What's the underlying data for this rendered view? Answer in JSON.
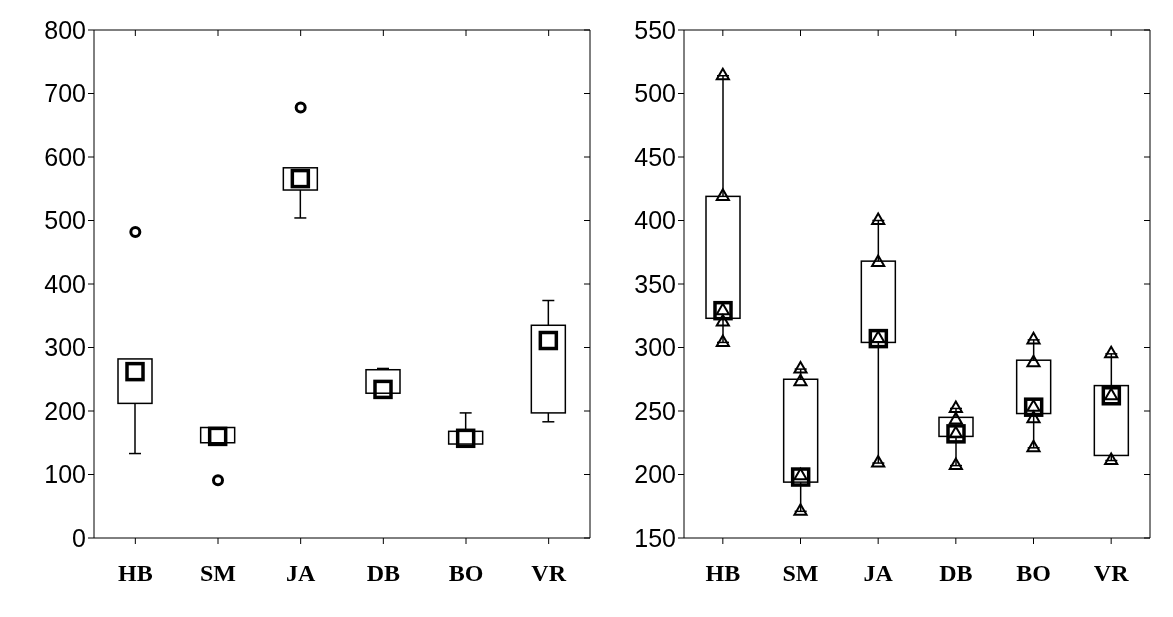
{
  "chart_data": [
    {
      "type": "box",
      "categories": [
        "HB",
        "SM",
        "JA",
        "DB",
        "BO",
        "VR"
      ],
      "ylim": [
        0,
        800
      ],
      "yticks": [
        0,
        100,
        200,
        300,
        400,
        500,
        600,
        700,
        800
      ],
      "boxes": [
        {
          "low": 133,
          "q1": 212,
          "median": 262,
          "q3": 282,
          "high": 282,
          "outliers": [
            482
          ]
        },
        {
          "low": 150,
          "q1": 150,
          "median": 160,
          "q3": 174,
          "high": 174,
          "outliers": [
            91
          ]
        },
        {
          "low": 504,
          "q1": 548,
          "median": 566,
          "q3": 583,
          "high": 583,
          "outliers": [
            678
          ]
        },
        {
          "low": 228,
          "q1": 228,
          "median": 234,
          "q3": 265,
          "high": 267
        },
        {
          "low": 148,
          "q1": 148,
          "median": 157,
          "q3": 168,
          "high": 197
        },
        {
          "low": 183,
          "q1": 197,
          "median": 311,
          "q3": 335,
          "high": 374
        }
      ]
    },
    {
      "type": "box",
      "categories": [
        "HB",
        "SM",
        "JA",
        "DB",
        "BO",
        "VR"
      ],
      "ylim": [
        150,
        550
      ],
      "yticks": [
        150,
        200,
        250,
        300,
        350,
        400,
        450,
        500,
        550
      ],
      "boxes": [
        {
          "low": 304,
          "q1": 323,
          "median": 329,
          "q3": 419,
          "high": 514
        },
        {
          "low": 171,
          "q1": 194,
          "median": 198,
          "q3": 275,
          "high": 283
        },
        {
          "low": 209,
          "q1": 304,
          "median": 307,
          "q3": 368,
          "high": 400
        },
        {
          "low": 207,
          "q1": 230,
          "median": 232,
          "q3": 245,
          "high": 252
        },
        {
          "low": 221,
          "q1": 248,
          "median": 253,
          "q3": 290,
          "high": 306
        },
        {
          "low": 211,
          "q1": 215,
          "median": 262,
          "q3": 270,
          "high": 295
        }
      ],
      "series": [
        {
          "type": "scatter",
          "marker": "triangle",
          "color": "#000000",
          "x": [
            "HB",
            "HB",
            "HB",
            "HB",
            "HB",
            "SM",
            "SM",
            "SM",
            "SM",
            "JA",
            "JA",
            "JA",
            "JA",
            "DB",
            "DB",
            "DB",
            "DB",
            "BO",
            "BO",
            "BO",
            "BO",
            "BO",
            "VR",
            "VR",
            "VR"
          ],
          "values": [
            514,
            419,
            329,
            320,
            304,
            283,
            273,
            199,
            171,
            400,
            367,
            307,
            209,
            252,
            243,
            232,
            207,
            306,
            288,
            253,
            244,
            221,
            295,
            262,
            211
          ]
        }
      ]
    }
  ]
}
